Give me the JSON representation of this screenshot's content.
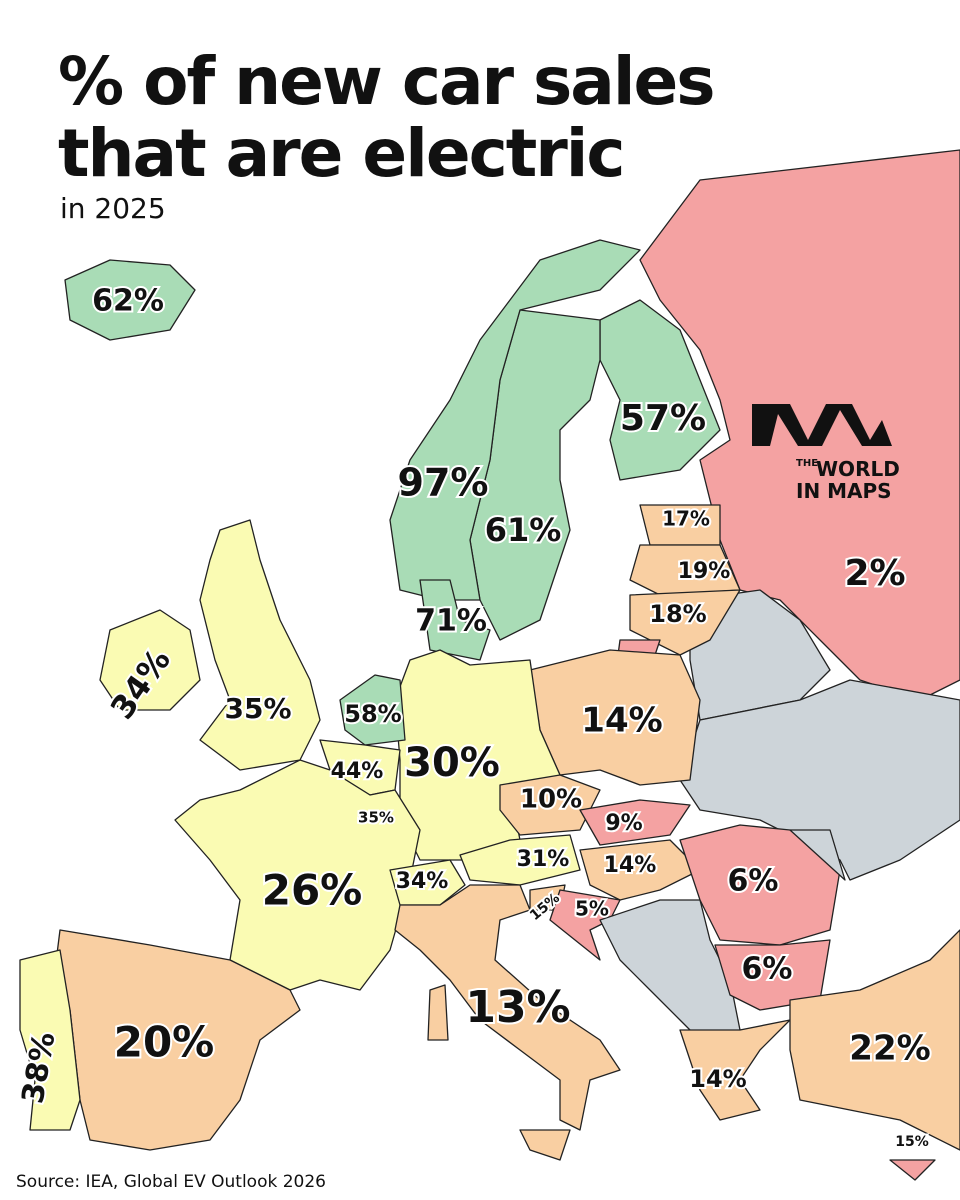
{
  "header": {
    "title_lines": [
      "% of new car sales",
      "that are electric"
    ],
    "subtitle": "in 2025"
  },
  "labels": [
    "62%",
    "97%",
    "61%",
    "57%",
    "71%",
    "17%",
    "19%",
    "18%",
    "2%",
    "34%",
    "35%",
    "58%",
    "44%",
    "35%",
    "30%",
    "14%",
    "10%",
    "9%",
    "31%",
    "14%",
    "34%",
    "26%",
    "15%",
    "5%",
    "6%",
    "6%",
    "13%",
    "20%",
    "38%",
    "14%",
    "22%",
    "15%"
  ],
  "logo": {
    "small": "THE",
    "line1": "WORLD",
    "line2": "IN MAPS"
  },
  "source": "Source: IEA, Global EV Outlook 2026"
}
